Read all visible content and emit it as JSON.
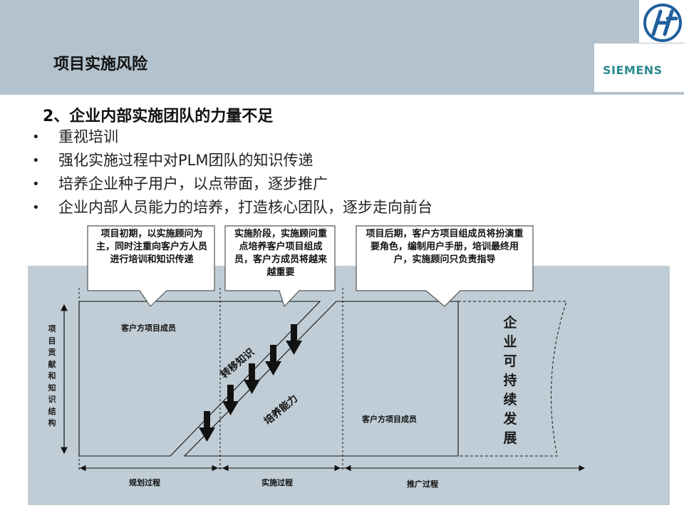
{
  "header": {
    "title": "项目实施风险",
    "brand": "SIEMENS",
    "logo_icon": "hf-circle-logo-icon",
    "band_color": "#b3c2cd",
    "brand_color": "#2b8a8f"
  },
  "content": {
    "heading": "2、企业内部实施团队的力量不足",
    "bullets": [
      "重视培训",
      "强化实施过程中对PLM团队的知识传递",
      "培养企业种子用户，以点带面，逐步推广",
      "企业内部人员能力的培养，打造核心团队，逐步走向前台"
    ]
  },
  "diagram": {
    "background": "#c0cdd6",
    "callouts": [
      "项目初期，以实施顾问为主，同时注重向客户方人员进行培训和知识传递",
      "实施阶段，实施顾问重点培养客户项目组成员，客户方成员将越来越重要",
      "项目后期，客户方项目组成员将扮演重要角色，编制用户手册，培训最终用户，实施顾问只负责指导"
    ],
    "y_axis_label": "项目贡献和知识结构",
    "area_labels": {
      "top_left": "客户方项目成员",
      "bottom_right": "客户方项目成员"
    },
    "band_labels": {
      "transfer_knowledge": "转移知识",
      "cultivate_ability": "培养能力"
    },
    "sustainability_label": "企业可持续发展",
    "phases": [
      "规划过程",
      "实施过程",
      "推广过程"
    ]
  }
}
